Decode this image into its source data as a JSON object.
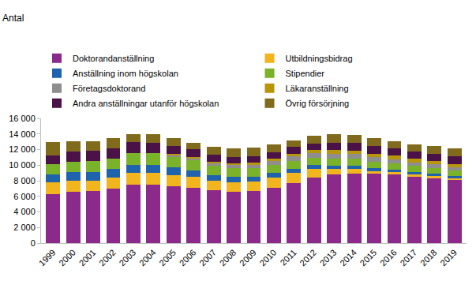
{
  "chart_data": {
    "type": "bar",
    "stacked": true,
    "ylabel": "Antal",
    "categories": [
      "1999",
      "2000",
      "2001",
      "2002",
      "2003",
      "2004",
      "2005",
      "2006",
      "2007",
      "2008",
      "2009",
      "2010",
      "2011",
      "2012",
      "2013",
      "2014",
      "2015",
      "2016",
      "2017",
      "2018",
      "2019"
    ],
    "series": [
      {
        "name": "Doktorandanställning",
        "color": "#8b2a8b",
        "values": [
          6250,
          6600,
          6650,
          7000,
          7450,
          7500,
          7300,
          7100,
          6800,
          6550,
          6650,
          7100,
          7700,
          8400,
          8800,
          8900,
          8900,
          8850,
          8600,
          8400,
          8200
        ]
      },
      {
        "name": "Utbildningsbidrag",
        "color": "#f2b51d",
        "values": [
          1500,
          1400,
          1350,
          1450,
          1550,
          1500,
          1450,
          1450,
          1250,
          1250,
          1200,
          1300,
          1300,
          1100,
          700,
          600,
          350,
          300,
          200,
          200,
          150
        ]
      },
      {
        "name": "Anställning inom högskolan",
        "color": "#1f63ad",
        "values": [
          1100,
          1100,
          1100,
          1100,
          1050,
          1000,
          1000,
          800,
          700,
          700,
          700,
          600,
          550,
          500,
          450,
          400,
          350,
          300,
          300,
          300,
          300
        ]
      },
      {
        "name": "Stipendier",
        "color": "#7ab22a",
        "values": [
          1250,
          1350,
          1450,
          1250,
          1500,
          1500,
          1350,
          1300,
          1200,
          1150,
          1100,
          1000,
          1000,
          900,
          900,
          900,
          850,
          800,
          800,
          750,
          700
        ]
      },
      {
        "name": "Företagsdoktorand",
        "color": "#8e8e8e",
        "values": [
          0,
          0,
          0,
          0,
          0,
          0,
          150,
          200,
          300,
          350,
          400,
          500,
          550,
          600,
          600,
          600,
          550,
          500,
          450,
          450,
          400
        ]
      },
      {
        "name": "Läkaranställning",
        "color": "#b8960c",
        "values": [
          0,
          0,
          0,
          0,
          0,
          0,
          150,
          200,
          200,
          250,
          300,
          350,
          350,
          400,
          450,
          450,
          450,
          450,
          450,
          400,
          400
        ]
      },
      {
        "name": "Andra anställningar utanför högskolan",
        "color": "#4a1246",
        "values": [
          1150,
          1250,
          1250,
          1400,
          1450,
          1400,
          1100,
          1000,
          900,
          750,
          750,
          800,
          900,
          900,
          1000,
          1000,
          1000,
          1000,
          950,
          950,
          950
        ]
      },
      {
        "name": "Övrig försörjning",
        "color": "#806a1c",
        "values": [
          1750,
          1350,
          1250,
          1250,
          1000,
          1100,
          1000,
          850,
          1050,
          1150,
          1150,
          1050,
          850,
          1000,
          1100,
          1000,
          1000,
          900,
          950,
          1050,
          1100
        ]
      }
    ],
    "ylim": [
      0,
      16000
    ],
    "yticks": [
      0,
      {
        "value": 2000,
        "label": "2 000"
      },
      {
        "value": 4000,
        "label": "4 000"
      },
      {
        "value": 6000,
        "label": "6 000"
      },
      {
        "value": 8000,
        "label": "8 000"
      },
      {
        "value": 10000,
        "label": "10 000"
      },
      {
        "value": 12000,
        "label": "12 000"
      },
      {
        "value": 14000,
        "label": "14 000"
      },
      {
        "value": 16000,
        "label": "16 000"
      }
    ],
    "grid": false,
    "legend": "top"
  }
}
